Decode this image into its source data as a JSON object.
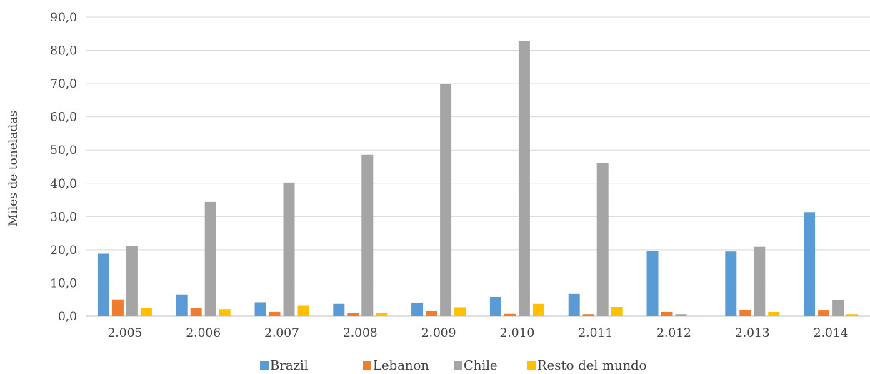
{
  "chart_data": {
    "type": "bar",
    "title": "",
    "xlabel": "",
    "ylabel": "Miles de toneladas",
    "ylim": [
      0,
      90
    ],
    "yticks": [
      "0,0",
      "10,0",
      "20,0",
      "30,0",
      "40,0",
      "50,0",
      "60,0",
      "70,0",
      "80,0",
      "90,0"
    ],
    "categories": [
      "2.005",
      "2.006",
      "2.007",
      "2.008",
      "2.009",
      "2.010",
      "2.011",
      "2.012",
      "2.013",
      "2.014"
    ],
    "grid": "horizontal",
    "legend_position": "bottom",
    "series": [
      {
        "name": "Brazil",
        "color": "#5B9BD5",
        "values": [
          18.8,
          6.5,
          4.2,
          3.7,
          4.1,
          5.8,
          6.7,
          19.6,
          19.5,
          31.3
        ]
      },
      {
        "name": "Lebanon",
        "color": "#ED7D31",
        "values": [
          5.0,
          2.4,
          1.3,
          0.9,
          1.5,
          0.7,
          0.6,
          1.3,
          1.9,
          1.7
        ]
      },
      {
        "name": "Chile",
        "color": "#A5A5A5",
        "values": [
          21.1,
          34.4,
          40.2,
          48.6,
          70.0,
          82.7,
          46.0,
          0.6,
          20.9,
          4.8
        ]
      },
      {
        "name": "Resto del mundo",
        "color": "#FFC000",
        "values": [
          2.4,
          2.1,
          3.1,
          1.0,
          2.7,
          3.7,
          2.8,
          0.1,
          1.3,
          0.6
        ]
      }
    ]
  }
}
